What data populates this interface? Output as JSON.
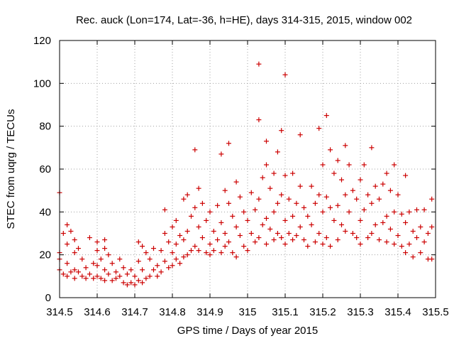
{
  "chart_data": {
    "type": "scatter",
    "title": "Rec. auck (Lon=174, Lat=-36, h=HE), days 314-315, 2015, window 002",
    "xlabel": "GPS time / Days of year 2015",
    "ylabel": "STEC from uqrg / TECUs",
    "xlim": [
      314.5,
      315.5
    ],
    "ylim": [
      0,
      120
    ],
    "xticks": [
      314.5,
      314.6,
      314.7,
      314.8,
      314.9,
      315,
      315.1,
      315.2,
      315.3,
      315.4,
      315.5
    ],
    "xtick_labels": [
      "314.5",
      "314.6",
      "314.7",
      "314.8",
      "314.9",
      "315",
      "315.1",
      "315.2",
      "315.3",
      "315.4",
      "315.5"
    ],
    "yticks": [
      0,
      20,
      40,
      60,
      80,
      100,
      120
    ],
    "ytick_labels": [
      "0",
      "20",
      "40",
      "60",
      "80",
      "100",
      "120"
    ],
    "grid": true,
    "marker": "plus",
    "color": "#cc0000",
    "points": [
      [
        314.5,
        49
      ],
      [
        314.5,
        21
      ],
      [
        314.5,
        18
      ],
      [
        314.5,
        13
      ],
      [
        314.51,
        30
      ],
      [
        314.51,
        11
      ],
      [
        314.52,
        34
      ],
      [
        314.52,
        25
      ],
      [
        314.52,
        16
      ],
      [
        314.52,
        10
      ],
      [
        314.53,
        31
      ],
      [
        314.53,
        12
      ],
      [
        314.54,
        27
      ],
      [
        314.54,
        21
      ],
      [
        314.54,
        13
      ],
      [
        314.54,
        9
      ],
      [
        314.55,
        23
      ],
      [
        314.55,
        12
      ],
      [
        314.56,
        18
      ],
      [
        314.56,
        10
      ],
      [
        314.57,
        14
      ],
      [
        314.57,
        9
      ],
      [
        314.58,
        28
      ],
      [
        314.58,
        11
      ],
      [
        314.59,
        16
      ],
      [
        314.59,
        9
      ],
      [
        314.6,
        26
      ],
      [
        314.6,
        22
      ],
      [
        314.6,
        15
      ],
      [
        314.6,
        10
      ],
      [
        314.61,
        18
      ],
      [
        314.61,
        9
      ],
      [
        314.62,
        27
      ],
      [
        314.62,
        23
      ],
      [
        314.62,
        13
      ],
      [
        314.62,
        8
      ],
      [
        314.63,
        20
      ],
      [
        314.63,
        11
      ],
      [
        314.64,
        16
      ],
      [
        314.64,
        8
      ],
      [
        314.65,
        12
      ],
      [
        314.65,
        9
      ],
      [
        314.66,
        18
      ],
      [
        314.66,
        10
      ],
      [
        314.67,
        14
      ],
      [
        314.67,
        7
      ],
      [
        314.68,
        11
      ],
      [
        314.68,
        6
      ],
      [
        314.69,
        13
      ],
      [
        314.69,
        7
      ],
      [
        314.7,
        10
      ],
      [
        314.7,
        6
      ],
      [
        314.71,
        26
      ],
      [
        314.71,
        17
      ],
      [
        314.71,
        8
      ],
      [
        314.72,
        24
      ],
      [
        314.72,
        13
      ],
      [
        314.72,
        7
      ],
      [
        314.73,
        21
      ],
      [
        314.73,
        9
      ],
      [
        314.74,
        18
      ],
      [
        314.74,
        10
      ],
      [
        314.75,
        23
      ],
      [
        314.75,
        13
      ],
      [
        314.76,
        15
      ],
      [
        314.76,
        10
      ],
      [
        314.77,
        22
      ],
      [
        314.77,
        12
      ],
      [
        314.78,
        41
      ],
      [
        314.78,
        30
      ],
      [
        314.78,
        17
      ],
      [
        314.79,
        26
      ],
      [
        314.79,
        14
      ],
      [
        314.8,
        33
      ],
      [
        314.8,
        21
      ],
      [
        314.8,
        15
      ],
      [
        314.81,
        36
      ],
      [
        314.81,
        25
      ],
      [
        314.81,
        18
      ],
      [
        314.82,
        29
      ],
      [
        314.82,
        16
      ],
      [
        314.83,
        46
      ],
      [
        314.83,
        27
      ],
      [
        314.83,
        19
      ],
      [
        314.84,
        48
      ],
      [
        314.84,
        31
      ],
      [
        314.84,
        20
      ],
      [
        314.85,
        38
      ],
      [
        314.85,
        22
      ],
      [
        314.86,
        69
      ],
      [
        314.86,
        42
      ],
      [
        314.86,
        24
      ],
      [
        314.87,
        51
      ],
      [
        314.87,
        33
      ],
      [
        314.87,
        22
      ],
      [
        314.88,
        44
      ],
      [
        314.88,
        28
      ],
      [
        314.89,
        36
      ],
      [
        314.89,
        21
      ],
      [
        314.9,
        40
      ],
      [
        314.9,
        25
      ],
      [
        314.9,
        20
      ],
      [
        314.91,
        31
      ],
      [
        314.91,
        22
      ],
      [
        314.92,
        43
      ],
      [
        314.92,
        27
      ],
      [
        314.93,
        67
      ],
      [
        314.93,
        35
      ],
      [
        314.93,
        21
      ],
      [
        314.94,
        50
      ],
      [
        314.94,
        30
      ],
      [
        314.94,
        24
      ],
      [
        314.95,
        72
      ],
      [
        314.95,
        44
      ],
      [
        314.95,
        26
      ],
      [
        314.96,
        38
      ],
      [
        314.96,
        21
      ],
      [
        314.97,
        54
      ],
      [
        314.97,
        33
      ],
      [
        314.97,
        19
      ],
      [
        314.98,
        47
      ],
      [
        314.98,
        29
      ],
      [
        314.99,
        40
      ],
      [
        314.99,
        24
      ],
      [
        315,
        36
      ],
      [
        315,
        22
      ],
      [
        315.01,
        49
      ],
      [
        315.01,
        30
      ],
      [
        315.02,
        41
      ],
      [
        315.02,
        26
      ],
      [
        315.03,
        109
      ],
      [
        315.03,
        83
      ],
      [
        315.03,
        46
      ],
      [
        315.03,
        28
      ],
      [
        315.04,
        56
      ],
      [
        315.04,
        34
      ],
      [
        315.05,
        73
      ],
      [
        315.05,
        62
      ],
      [
        315.05,
        37
      ],
      [
        315.05,
        25
      ],
      [
        315.06,
        51
      ],
      [
        315.06,
        32
      ],
      [
        315.07,
        58
      ],
      [
        315.07,
        40
      ],
      [
        315.07,
        27
      ],
      [
        315.08,
        68
      ],
      [
        315.08,
        44
      ],
      [
        315.08,
        30
      ],
      [
        315.09,
        78
      ],
      [
        315.09,
        48
      ],
      [
        315.09,
        28
      ],
      [
        315.1,
        104
      ],
      [
        315.1,
        57
      ],
      [
        315.1,
        36
      ],
      [
        315.1,
        25
      ],
      [
        315.11,
        46
      ],
      [
        315.11,
        30
      ],
      [
        315.12,
        58
      ],
      [
        315.12,
        38
      ],
      [
        315.12,
        27
      ],
      [
        315.13,
        44
      ],
      [
        315.13,
        29
      ],
      [
        315.14,
        76
      ],
      [
        315.14,
        52
      ],
      [
        315.14,
        33
      ],
      [
        315.15,
        42
      ],
      [
        315.15,
        27
      ],
      [
        315.16,
        38
      ],
      [
        315.16,
        24
      ],
      [
        315.17,
        52
      ],
      [
        315.17,
        34
      ],
      [
        315.18,
        44
      ],
      [
        315.18,
        26
      ],
      [
        315.19,
        79
      ],
      [
        315.19,
        48
      ],
      [
        315.19,
        30
      ],
      [
        315.2,
        62
      ],
      [
        315.2,
        40
      ],
      [
        315.2,
        25
      ],
      [
        315.21,
        85
      ],
      [
        315.21,
        47
      ],
      [
        315.21,
        28
      ],
      [
        315.22,
        69
      ],
      [
        315.22,
        42
      ],
      [
        315.22,
        24
      ],
      [
        315.23,
        58
      ],
      [
        315.23,
        36
      ],
      [
        315.24,
        64
      ],
      [
        315.24,
        43
      ],
      [
        315.24,
        27
      ],
      [
        315.25,
        55
      ],
      [
        315.25,
        34
      ],
      [
        315.26,
        71
      ],
      [
        315.26,
        48
      ],
      [
        315.26,
        31
      ],
      [
        315.27,
        62
      ],
      [
        315.27,
        40
      ],
      [
        315.28,
        50
      ],
      [
        315.28,
        30
      ],
      [
        315.29,
        46
      ],
      [
        315.29,
        28
      ],
      [
        315.3,
        55
      ],
      [
        315.3,
        36
      ],
      [
        315.3,
        25
      ],
      [
        315.31,
        62
      ],
      [
        315.31,
        41
      ],
      [
        315.32,
        48
      ],
      [
        315.32,
        28
      ],
      [
        315.33,
        70
      ],
      [
        315.33,
        44
      ],
      [
        315.33,
        30
      ],
      [
        315.34,
        52
      ],
      [
        315.34,
        34
      ],
      [
        315.35,
        46
      ],
      [
        315.35,
        27
      ],
      [
        315.36,
        53
      ],
      [
        315.36,
        35
      ],
      [
        315.37,
        58
      ],
      [
        315.37,
        38
      ],
      [
        315.37,
        26
      ],
      [
        315.38,
        50
      ],
      [
        315.38,
        32
      ],
      [
        315.39,
        62
      ],
      [
        315.39,
        40
      ],
      [
        315.39,
        25
      ],
      [
        315.4,
        48
      ],
      [
        315.4,
        29
      ],
      [
        315.41,
        39
      ],
      [
        315.41,
        24
      ],
      [
        315.42,
        57
      ],
      [
        315.42,
        35
      ],
      [
        315.42,
        21
      ],
      [
        315.43,
        40
      ],
      [
        315.43,
        25
      ],
      [
        315.44,
        31
      ],
      [
        315.44,
        19
      ],
      [
        315.45,
        41
      ],
      [
        315.45,
        28
      ],
      [
        315.46,
        33
      ],
      [
        315.46,
        21
      ],
      [
        315.47,
        41
      ],
      [
        315.47,
        26
      ],
      [
        315.48,
        30
      ],
      [
        315.48,
        18
      ],
      [
        315.49,
        46
      ],
      [
        315.49,
        33
      ],
      [
        315.49,
        18
      ]
    ]
  }
}
